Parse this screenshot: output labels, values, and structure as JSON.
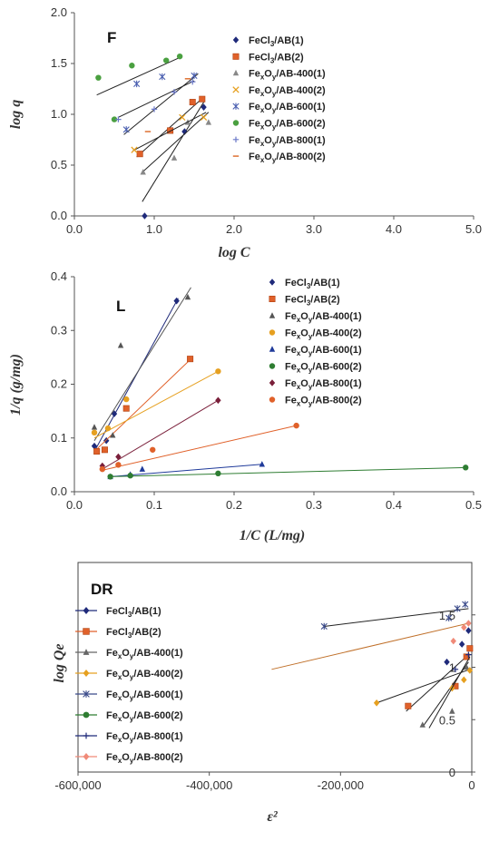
{
  "chart_data": [
    {
      "type": "scatter",
      "title": "F",
      "xlabel": "log C",
      "ylabel": "log q",
      "xlim": [
        0,
        5
      ],
      "ylim": [
        0,
        2
      ],
      "xticks": [
        "0.0",
        "1.0",
        "2.0",
        "3.0",
        "4.0",
        "5.0"
      ],
      "yticks": [
        "0.0",
        "0.5",
        "1.0",
        "1.5",
        "2.0"
      ],
      "grid": false,
      "legend_position": "top-right",
      "series": [
        {
          "name": "FeCl3/AB(1)",
          "color": "#1f2a7a",
          "marker": "diamond",
          "points": [
            [
              0.88,
              0.0
            ],
            [
              1.38,
              0.83
            ],
            [
              1.62,
              1.07
            ]
          ],
          "fit": [
            [
              0.85,
              0.14
            ],
            [
              1.62,
              1.12
            ]
          ]
        },
        {
          "name": "FeCl3/AB(2)",
          "color": "#e0612a",
          "marker": "square",
          "points": [
            [
              0.82,
              0.61
            ],
            [
              1.2,
              0.84
            ],
            [
              1.48,
              1.12
            ],
            [
              1.6,
              1.15
            ]
          ],
          "fit": [
            [
              0.78,
              0.58
            ],
            [
              1.62,
              1.17
            ]
          ]
        },
        {
          "name": "FexOy/AB-400(1)",
          "color": "#888888",
          "marker": "triangle",
          "points": [
            [
              0.86,
              0.43
            ],
            [
              1.25,
              0.57
            ],
            [
              1.42,
              0.92
            ],
            [
              1.68,
              0.92
            ]
          ],
          "fit": [
            [
              0.85,
              0.43
            ],
            [
              1.68,
              1.02
            ]
          ]
        },
        {
          "name": "FexOy/AB-400(2)",
          "color": "#e6a020",
          "marker": "x",
          "points": [
            [
              0.75,
              0.65
            ],
            [
              1.35,
              0.97
            ],
            [
              1.62,
              0.97
            ]
          ],
          "fit": [
            [
              0.73,
              0.64
            ],
            [
              1.65,
              1.02
            ]
          ]
        },
        {
          "name": "FexOy/AB-600(1)",
          "color": "#4a5fb0",
          "marker": "star",
          "points": [
            [
              0.65,
              0.85
            ],
            [
              0.78,
              1.3
            ],
            [
              1.1,
              1.37
            ],
            [
              1.5,
              1.38
            ]
          ],
          "fit": [
            [
              0.62,
              0.8
            ],
            [
              1.55,
              1.4
            ]
          ]
        },
        {
          "name": "FexOy/AB-600(2)",
          "color": "#4aa040",
          "marker": "circle",
          "points": [
            [
              0.3,
              1.36
            ],
            [
              0.5,
              0.95
            ],
            [
              0.72,
              1.48
            ],
            [
              1.15,
              1.53
            ],
            [
              1.32,
              1.57
            ]
          ],
          "fit": [
            [
              0.28,
              1.19
            ],
            [
              1.35,
              1.57
            ]
          ]
        },
        {
          "name": "FexOy/AB-800(1)",
          "color": "#6a78c8",
          "marker": "plus",
          "points": [
            [
              0.55,
              0.95
            ],
            [
              1.0,
              1.05
            ],
            [
              1.25,
              1.22
            ],
            [
              1.48,
              1.32
            ]
          ],
          "fit": [
            [
              0.55,
              0.97
            ],
            [
              1.5,
              1.33
            ]
          ]
        },
        {
          "name": "FexOy/AB-800(2)",
          "color": "#e07a40",
          "marker": "dash",
          "points": [
            [
              0.92,
              0.83
            ],
            [
              1.42,
              1.35
            ]
          ],
          "fit": []
        }
      ]
    },
    {
      "type": "scatter",
      "title": "L",
      "xlabel": "1/C (L/mg)",
      "ylabel": "1/q (g/mg)",
      "xlim": [
        0,
        0.5
      ],
      "ylim": [
        0,
        0.4
      ],
      "xticks": [
        "0.0",
        "0.1",
        "0.2",
        "0.3",
        "0.4",
        "0.5"
      ],
      "yticks": [
        "0.0",
        "0.1",
        "0.2",
        "0.3",
        "0.4"
      ],
      "grid": false,
      "legend_position": "top-right",
      "series": [
        {
          "name": "FeCl3/AB(1)",
          "color": "#1f2a7a",
          "marker": "diamond",
          "points": [
            [
              0.025,
              0.085
            ],
            [
              0.04,
              0.095
            ],
            [
              0.05,
              0.145
            ],
            [
              0.128,
              0.355
            ]
          ],
          "fit": [
            [
              0.025,
              0.075
            ],
            [
              0.13,
              0.36
            ]
          ]
        },
        {
          "name": "FeCl3/AB(2)",
          "color": "#e0612a",
          "marker": "square",
          "points": [
            [
              0.028,
              0.075
            ],
            [
              0.038,
              0.078
            ],
            [
              0.065,
              0.155
            ],
            [
              0.145,
              0.247
            ]
          ],
          "fit": [
            [
              0.025,
              0.075
            ],
            [
              0.146,
              0.247
            ]
          ]
        },
        {
          "name": "FexOy/AB-400(1)",
          "color": "#555555",
          "marker": "triangle",
          "points": [
            [
              0.025,
              0.12
            ],
            [
              0.048,
              0.105
            ],
            [
              0.058,
              0.272
            ],
            [
              0.142,
              0.362
            ]
          ],
          "fit": [
            [
              0.025,
              0.095
            ],
            [
              0.146,
              0.38
            ]
          ]
        },
        {
          "name": "FexOy/AB-400(2)",
          "color": "#e6a020",
          "marker": "circle",
          "points": [
            [
              0.025,
              0.11
            ],
            [
              0.042,
              0.118
            ],
            [
              0.065,
              0.172
            ],
            [
              0.18,
              0.224
            ]
          ],
          "fit": [
            [
              0.025,
              0.1
            ],
            [
              0.18,
              0.224
            ]
          ]
        },
        {
          "name": "FexOy/AB-600(1)",
          "color": "#1f3a9a",
          "marker": "triangle",
          "points": [
            [
              0.045,
              0.028
            ],
            [
              0.07,
              0.032
            ],
            [
              0.085,
              0.042
            ],
            [
              0.235,
              0.051
            ]
          ],
          "fit": [
            [
              0.045,
              0.028
            ],
            [
              0.235,
              0.051
            ]
          ]
        },
        {
          "name": "FexOy/AB-600(2)",
          "color": "#2e7d32",
          "marker": "circle",
          "points": [
            [
              0.045,
              0.028
            ],
            [
              0.07,
              0.03
            ],
            [
              0.18,
              0.034
            ],
            [
              0.49,
              0.045
            ]
          ],
          "fit": [
            [
              0.045,
              0.028
            ],
            [
              0.49,
              0.045
            ]
          ]
        },
        {
          "name": "FexOy/AB-800(1)",
          "color": "#7a1f3a",
          "marker": "diamond",
          "points": [
            [
              0.035,
              0.048
            ],
            [
              0.055,
              0.065
            ],
            [
              0.18,
              0.17
            ]
          ],
          "fit": [
            [
              0.035,
              0.042
            ],
            [
              0.18,
              0.17
            ]
          ]
        },
        {
          "name": "FexOy/AB-800(2)",
          "color": "#e0612a",
          "marker": "circle",
          "points": [
            [
              0.035,
              0.042
            ],
            [
              0.055,
              0.05
            ],
            [
              0.098,
              0.078
            ],
            [
              0.278,
              0.123
            ]
          ],
          "fit": [
            [
              0.035,
              0.04
            ],
            [
              0.278,
              0.123
            ]
          ]
        }
      ]
    },
    {
      "type": "scatter",
      "title": "DR",
      "xlabel": "ε²",
      "ylabel": "log Qe",
      "xlim": [
        -600000,
        0
      ],
      "ylim": [
        0,
        2
      ],
      "xticks": [
        "-600,000",
        "-400,000",
        "-200,000",
        "0"
      ],
      "yticks": [
        "0",
        "0.5",
        "1",
        "1.5"
      ],
      "grid": false,
      "legend_position": "left",
      "series": [
        {
          "name": "FeCl3/AB(1)",
          "color": "#1f2a7a",
          "marker": "diamond",
          "points": [
            [
              -38000,
              1.05
            ],
            [
              -15000,
              1.22
            ],
            [
              -5000,
              1.35
            ]
          ],
          "fit": []
        },
        {
          "name": "FeCl3/AB(2)",
          "color": "#e0612a",
          "marker": "square",
          "points": [
            [
              -97000,
              0.63
            ],
            [
              -25000,
              0.82
            ],
            [
              -8000,
              1.1
            ],
            [
              -3000,
              1.18
            ]
          ],
          "fit": [
            [
              -100000,
              0.58
            ],
            [
              -5000,
              1.12
            ]
          ]
        },
        {
          "name": "FexOy/AB-400(1)",
          "color": "#666666",
          "marker": "triangle",
          "points": [
            [
              -75000,
              0.45
            ],
            [
              -30000,
              0.58
            ],
            [
              -8000,
              1.0
            ]
          ],
          "fit": [
            [
              -75000,
              0.43
            ],
            [
              -5000,
              1.05
            ]
          ]
        },
        {
          "name": "FexOy/AB-400(2)",
          "color": "#e6a020",
          "marker": "diamond",
          "points": [
            [
              -145000,
              0.66
            ],
            [
              -30000,
              0.8
            ],
            [
              -12000,
              0.88
            ],
            [
              -3000,
              0.97
            ]
          ],
          "fit": [
            [
              -145000,
              0.66
            ],
            [
              -3000,
              0.98
            ]
          ]
        },
        {
          "name": "FexOy/AB-600(1)",
          "color": "#3a4a8a",
          "marker": "star",
          "points": [
            [
              -225000,
              1.39
            ],
            [
              -35000,
              1.47
            ],
            [
              -22000,
              1.56
            ],
            [
              -10000,
              1.6
            ]
          ],
          "fit": [
            [
              -225000,
              1.39
            ],
            [
              -5000,
              1.56
            ]
          ]
        },
        {
          "name": "FexOy/AB-600(2)",
          "color": "#2e7d32",
          "marker": "circle",
          "points": [],
          "fit": []
        },
        {
          "name": "FexOy/AB-800(1)",
          "color": "#1f2a7a",
          "marker": "plus",
          "points": [
            [
              -25000,
              0.98
            ],
            [
              -5000,
              1.12
            ]
          ],
          "fit": [
            [
              -65000,
              0.42
            ],
            [
              -3000,
              1.1
            ]
          ]
        },
        {
          "name": "FexOy/AB-800(2)",
          "color": "#f08a78",
          "marker": "diamond",
          "points": [
            [
              -28000,
              1.25
            ],
            [
              -12000,
              1.38
            ],
            [
              -5000,
              1.42
            ]
          ],
          "fit": [
            [
              -305000,
              0.98
            ],
            [
              -5000,
              1.42
            ]
          ]
        }
      ]
    }
  ]
}
